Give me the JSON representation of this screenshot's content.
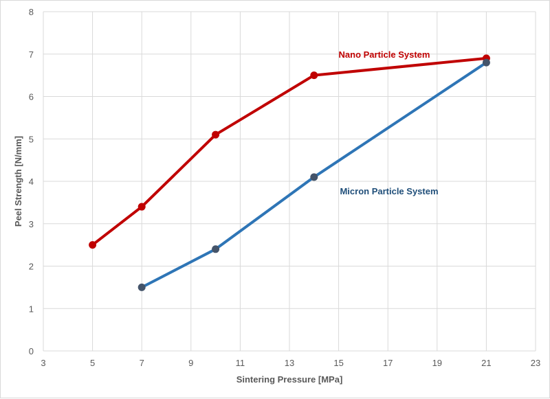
{
  "chart_data": {
    "type": "line",
    "title": "",
    "xlabel": "Sintering Pressure [MPa]",
    "ylabel": "Peel Strength [N/mm]",
    "xlim": [
      3,
      23
    ],
    "ylim": [
      0,
      8
    ],
    "x_ticks": [
      3,
      5,
      7,
      9,
      11,
      13,
      15,
      17,
      19,
      21,
      23
    ],
    "y_ticks": [
      0,
      1,
      2,
      3,
      4,
      5,
      6,
      7,
      8
    ],
    "grid": true,
    "legend": "none",
    "series": [
      {
        "name": "Nano Particle System",
        "color": "#c00000",
        "marker_color": "#c00000",
        "x": [
          5,
          7,
          10,
          14,
          21
        ],
        "y": [
          2.5,
          3.4,
          5.1,
          6.5,
          6.9
        ]
      },
      {
        "name": "Micron Particle System",
        "color": "#2e75b6",
        "marker_color": "#44546a",
        "x": [
          7,
          10,
          14,
          21
        ],
        "y": [
          1.5,
          2.4,
          4.1,
          6.8
        ]
      }
    ],
    "annotations": [
      {
        "text": "Nano Particle System",
        "series": 0,
        "color": "#c00000"
      },
      {
        "text": "Micron Particle System",
        "series": 1,
        "color": "#1f4e79"
      }
    ]
  }
}
